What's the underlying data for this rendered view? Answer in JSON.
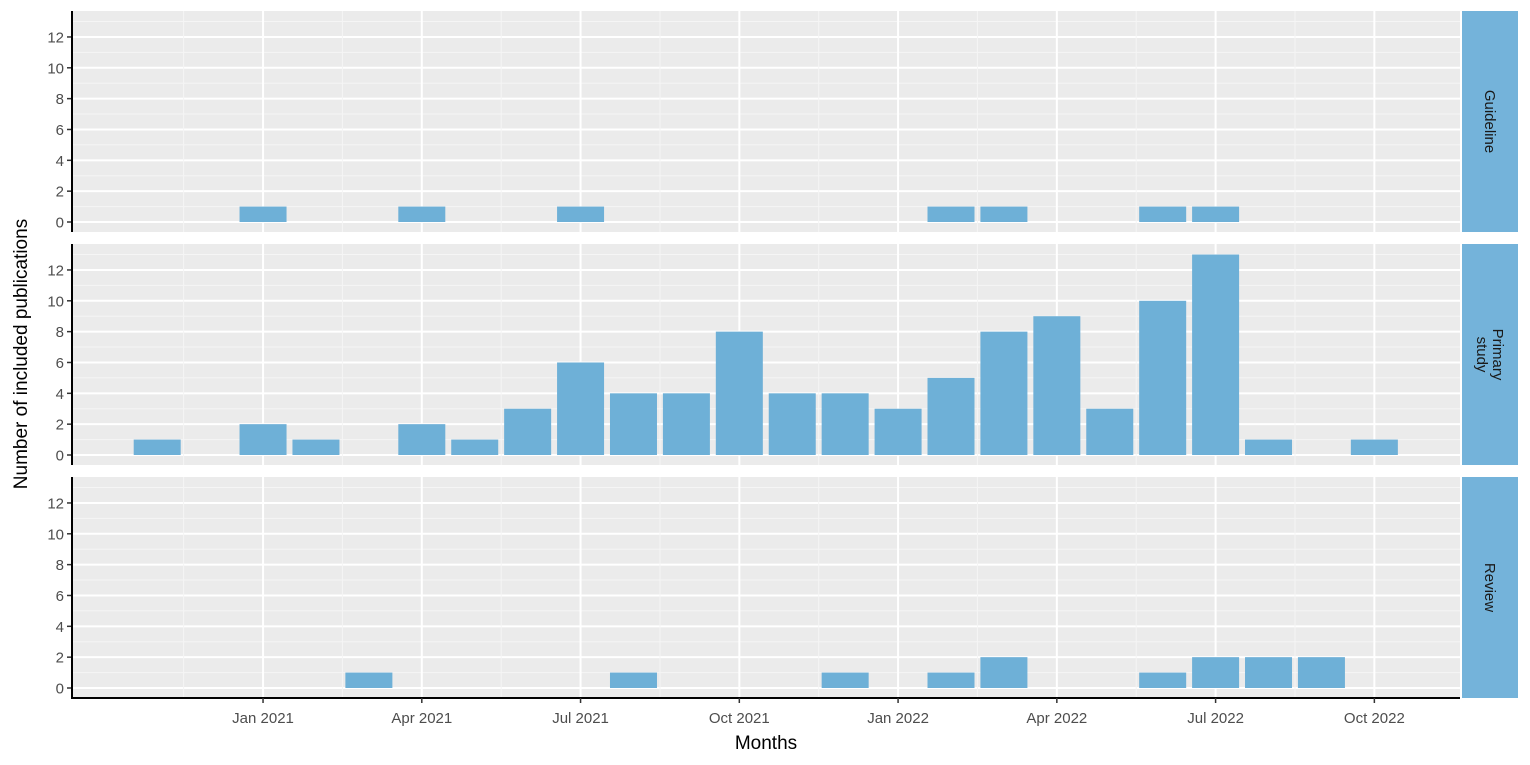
{
  "chart_data": {
    "type": "bar",
    "layout": "faceted (facet_grid rows)",
    "title": "",
    "xlabel": "Months",
    "ylabel": "Number of included publications",
    "x_tick_labels": [
      "Jan 2021",
      "Apr 2021",
      "Jul 2021",
      "Oct 2021",
      "Jan 2022",
      "Apr 2022",
      "Jul 2022",
      "Oct 2022"
    ],
    "y_tick_labels": [
      "0",
      "2",
      "4",
      "6",
      "8",
      "10",
      "12"
    ],
    "y_ticks": [
      0,
      2,
      4,
      6,
      8,
      10,
      12
    ],
    "ylim": [
      0,
      13
    ],
    "grid": true,
    "bar_color": "#6baed6",
    "strip_color": "#74b3da",
    "panel_background": "#ebebeb",
    "categories": [
      "Nov 2020",
      "Dec 2020",
      "Jan 2021",
      "Feb 2021",
      "Mar 2021",
      "Apr 2021",
      "May 2021",
      "Jun 2021",
      "Jul 2021",
      "Aug 2021",
      "Sep 2021",
      "Oct 2021",
      "Nov 2021",
      "Dec 2021",
      "Jan 2022",
      "Feb 2022",
      "Mar 2022",
      "Apr 2022",
      "May 2022",
      "Jun 2022",
      "Jul 2022",
      "Aug 2022",
      "Sep 2022",
      "Oct 2022"
    ],
    "series": [
      {
        "name": "Guideline",
        "values": [
          0,
          0,
          1,
          0,
          0,
          1,
          0,
          0,
          1,
          0,
          0,
          0,
          0,
          0,
          0,
          1,
          1,
          0,
          0,
          1,
          1,
          0,
          0,
          0
        ]
      },
      {
        "name": "Primary study",
        "values": [
          1,
          0,
          2,
          1,
          0,
          2,
          1,
          3,
          6,
          4,
          4,
          8,
          4,
          4,
          3,
          5,
          8,
          9,
          3,
          10,
          13,
          1,
          0,
          1
        ]
      },
      {
        "name": "Review",
        "values": [
          0,
          0,
          0,
          0,
          1,
          0,
          0,
          0,
          0,
          1,
          0,
          0,
          0,
          1,
          0,
          1,
          2,
          0,
          0,
          1,
          2,
          2,
          2,
          0
        ]
      }
    ]
  },
  "panels": [
    {
      "strip_lines": [
        "Guideline"
      ]
    },
    {
      "strip_lines": [
        "Primary",
        "study"
      ]
    },
    {
      "strip_lines": [
        "Review"
      ]
    }
  ]
}
